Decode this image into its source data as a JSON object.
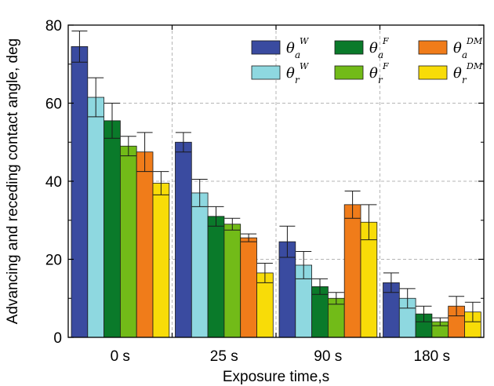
{
  "chart_data": {
    "type": "bar",
    "title": "",
    "xlabel": "Exposure time,s",
    "ylabel": "Advancing and receding contact angle, deg",
    "categories": [
      "0 s",
      "25 s",
      "90 s",
      "180 s"
    ],
    "ylim": [
      0,
      80
    ],
    "yticks": [
      "0",
      "20",
      "40",
      "60",
      "80"
    ],
    "grid": true,
    "legend_position": "top-right",
    "series": [
      {
        "legend": {
          "base": "θ",
          "sub": "a",
          "sup": "W"
        },
        "color": "#3a4ba0",
        "values": [
          74.5,
          50,
          24.5,
          14
        ],
        "errors": [
          4,
          2.5,
          4,
          2.5
        ]
      },
      {
        "legend": {
          "base": "θ",
          "sub": "r",
          "sup": "W"
        },
        "color": "#8ed8e0",
        "values": [
          61.5,
          37,
          18.5,
          10
        ],
        "errors": [
          5,
          3.5,
          3.5,
          2.5
        ]
      },
      {
        "legend": {
          "base": "θ",
          "sub": "a",
          "sup": "F"
        },
        "color": "#0a7a2a",
        "values": [
          55.5,
          31,
          13,
          6
        ],
        "errors": [
          4.5,
          2.5,
          2,
          2
        ]
      },
      {
        "legend": {
          "base": "θ",
          "sub": "r",
          "sup": "F"
        },
        "color": "#72bb18",
        "values": [
          49,
          29,
          10,
          4
        ],
        "errors": [
          2.5,
          1.5,
          1.5,
          1
        ]
      },
      {
        "legend": {
          "base": "θ",
          "sub": "a",
          "sup": "DM"
        },
        "color": "#f07c1a",
        "values": [
          47.5,
          25.5,
          34,
          8
        ],
        "errors": [
          5,
          1,
          3.5,
          2.5
        ]
      },
      {
        "legend": {
          "base": "θ",
          "sub": "r",
          "sup": "DM"
        },
        "color": "#f8dc08",
        "values": [
          39.5,
          16.5,
          29.5,
          6.5
        ],
        "errors": [
          3,
          2.5,
          4.5,
          2.5
        ]
      }
    ]
  }
}
